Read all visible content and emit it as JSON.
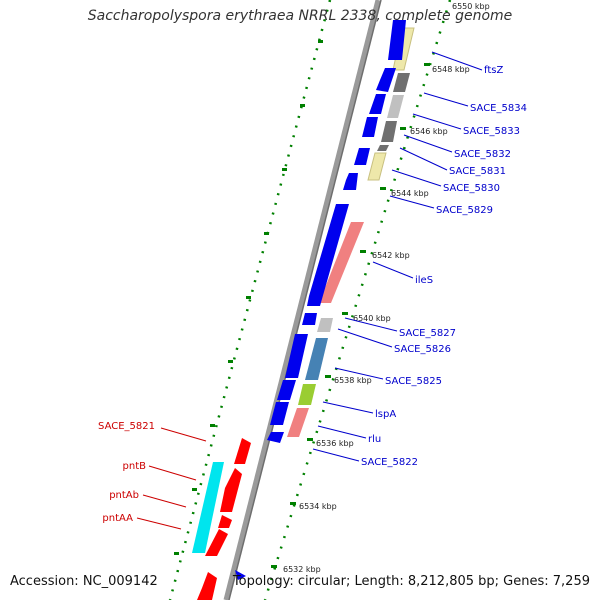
{
  "title": "Saccharopolyspora erythraea NRRL 2338, complete genome",
  "footer": {
    "accession": "Accession: NC_009142",
    "summary": "Topology: circular; Length: 8,212,805 bp; Genes: 7,259"
  },
  "scale": {
    "ticks": [
      "6550 kbp",
      "6548 kbp",
      "6546 kbp",
      "6544 kbp",
      "6542 kbp",
      "6540 kbp",
      "6538 kbp",
      "6536 kbp",
      "6534 kbp",
      "6532 kbp"
    ]
  },
  "genes_right": [
    {
      "name": "ftsZ"
    },
    {
      "name": "SACE_5834"
    },
    {
      "name": "SACE_5833"
    },
    {
      "name": "SACE_5832"
    },
    {
      "name": "SACE_5831"
    },
    {
      "name": "SACE_5830"
    },
    {
      "name": "SACE_5829"
    },
    {
      "name": "ileS"
    },
    {
      "name": "SACE_5827"
    },
    {
      "name": "SACE_5826"
    },
    {
      "name": "SACE_5825"
    },
    {
      "name": "lspA"
    },
    {
      "name": "rlu"
    },
    {
      "name": "SACE_5822"
    }
  ],
  "genes_left": [
    {
      "name": "SACE_5821"
    },
    {
      "name": "pntB"
    },
    {
      "name": "pntAb"
    },
    {
      "name": "pntAA"
    }
  ],
  "colors": {
    "backbone": "#808080",
    "cds_forward": "#0000ee",
    "cds_reverse": "#ff0000",
    "trna_like": "#f08080",
    "pale_yellow": "#eee8aa",
    "gray_dark": "#707070",
    "gray_light": "#c0c0c0",
    "steel_blue": "#4682b4",
    "yellow_green": "#9acd32",
    "cyan": "#00e5ee",
    "tick_green": "#008000",
    "label_right": "#0000cc",
    "label_left": "#cc0000"
  }
}
